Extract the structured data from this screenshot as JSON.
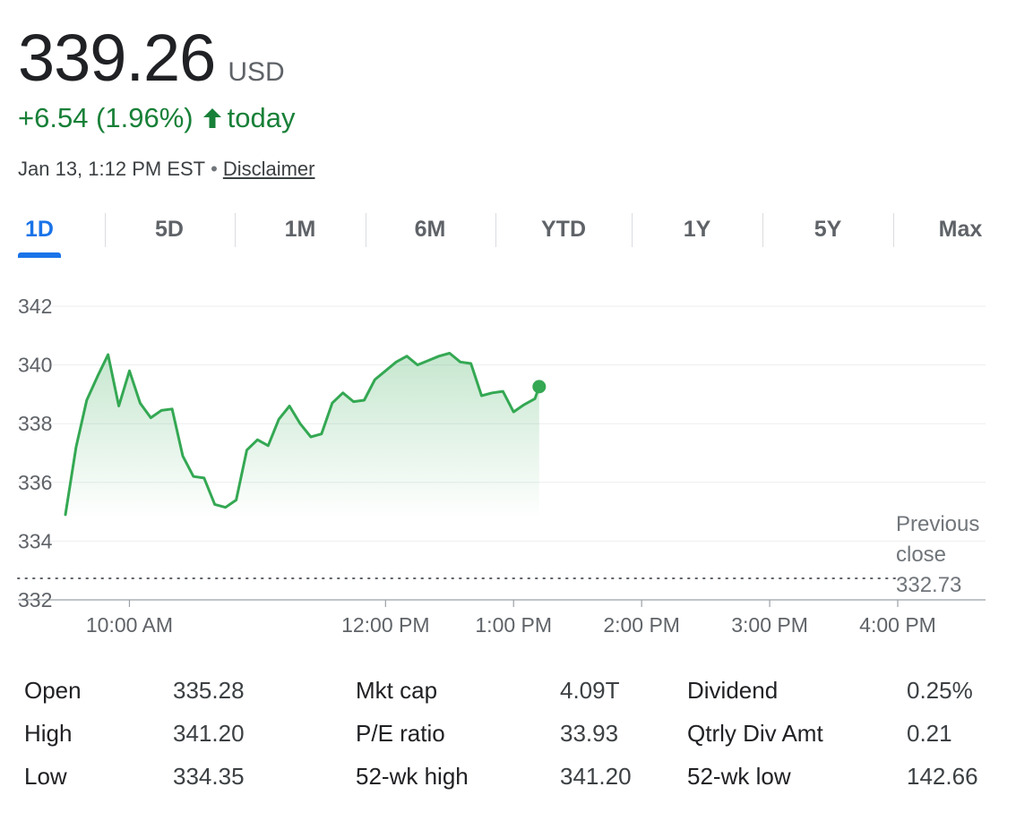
{
  "quote": {
    "price": "339.26",
    "currency": "USD",
    "change": "+6.54 (1.96%)",
    "change_suffix": "today",
    "timestamp": "Jan 13, 1:12 PM EST",
    "separator": "•",
    "disclaimer": "Disclaimer",
    "color_up": "#188038"
  },
  "tabs": [
    {
      "label": "1D",
      "active": true
    },
    {
      "label": "5D",
      "active": false
    },
    {
      "label": "1M",
      "active": false
    },
    {
      "label": "6M",
      "active": false
    },
    {
      "label": "YTD",
      "active": false
    },
    {
      "label": "1Y",
      "active": false
    },
    {
      "label": "5Y",
      "active": false
    },
    {
      "label": "Max",
      "active": false
    }
  ],
  "chart_data": {
    "type": "line",
    "series": [
      {
        "x": [
          "9:30",
          "9:35",
          "9:40",
          "9:45",
          "9:50",
          "9:55",
          "10:00",
          "10:05",
          "10:10",
          "10:15",
          "10:20",
          "10:25",
          "10:30",
          "10:35",
          "10:40",
          "10:45",
          "10:50",
          "10:55",
          "11:00",
          "11:05",
          "11:10",
          "11:15",
          "11:20",
          "11:25",
          "11:30",
          "11:35",
          "11:40",
          "11:45",
          "11:50",
          "11:55",
          "12:00",
          "12:05",
          "12:10",
          "12:15",
          "12:20",
          "12:25",
          "12:30",
          "12:35",
          "12:40",
          "12:45",
          "12:50",
          "12:55",
          "13:00",
          "13:05",
          "13:10",
          "13:12"
        ],
        "values": [
          334.9,
          337.2,
          338.8,
          339.6,
          340.35,
          338.6,
          339.8,
          338.7,
          338.2,
          338.45,
          338.5,
          336.9,
          336.2,
          336.15,
          335.25,
          335.15,
          335.4,
          337.1,
          337.45,
          337.25,
          338.15,
          338.6,
          338.0,
          337.55,
          337.65,
          338.7,
          339.05,
          338.75,
          338.8,
          339.5,
          339.8,
          340.1,
          340.3,
          340.0,
          340.15,
          340.3,
          340.4,
          340.1,
          340.05,
          338.95,
          339.05,
          339.1,
          338.4,
          338.65,
          338.85,
          339.26
        ]
      }
    ],
    "ylim": [
      332,
      342
    ],
    "yticks": [
      332,
      334,
      336,
      338,
      340,
      342
    ],
    "xticks": [
      {
        "label": "10:00 AM",
        "t": "10:00"
      },
      {
        "label": "12:00 PM",
        "t": "12:00"
      },
      {
        "label": "1:00 PM",
        "t": "13:00"
      },
      {
        "label": "2:00 PM",
        "t": "14:00"
      },
      {
        "label": "3:00 PM",
        "t": "15:00"
      },
      {
        "label": "4:00 PM",
        "t": "16:00"
      }
    ],
    "x_range": [
      "9:30",
      "16:00"
    ],
    "previous_close": 332.73,
    "previous_close_label_line1": "Previous",
    "previous_close_label_line2": "close",
    "previous_close_value": "332.73",
    "grid": true,
    "line_color": "#34a853"
  },
  "stats": [
    [
      {
        "label": "Open",
        "value": "335.28"
      },
      {
        "label": "Mkt cap",
        "value": "4.09T"
      },
      {
        "label": "Dividend",
        "value": "0.25%"
      }
    ],
    [
      {
        "label": "High",
        "value": "341.20"
      },
      {
        "label": "P/E ratio",
        "value": "33.93"
      },
      {
        "label": "Qtrly Div Amt",
        "value": "0.21"
      }
    ],
    [
      {
        "label": "Low",
        "value": "334.35"
      },
      {
        "label": "52-wk high",
        "value": "341.20"
      },
      {
        "label": "52-wk low",
        "value": "142.66"
      }
    ]
  ]
}
